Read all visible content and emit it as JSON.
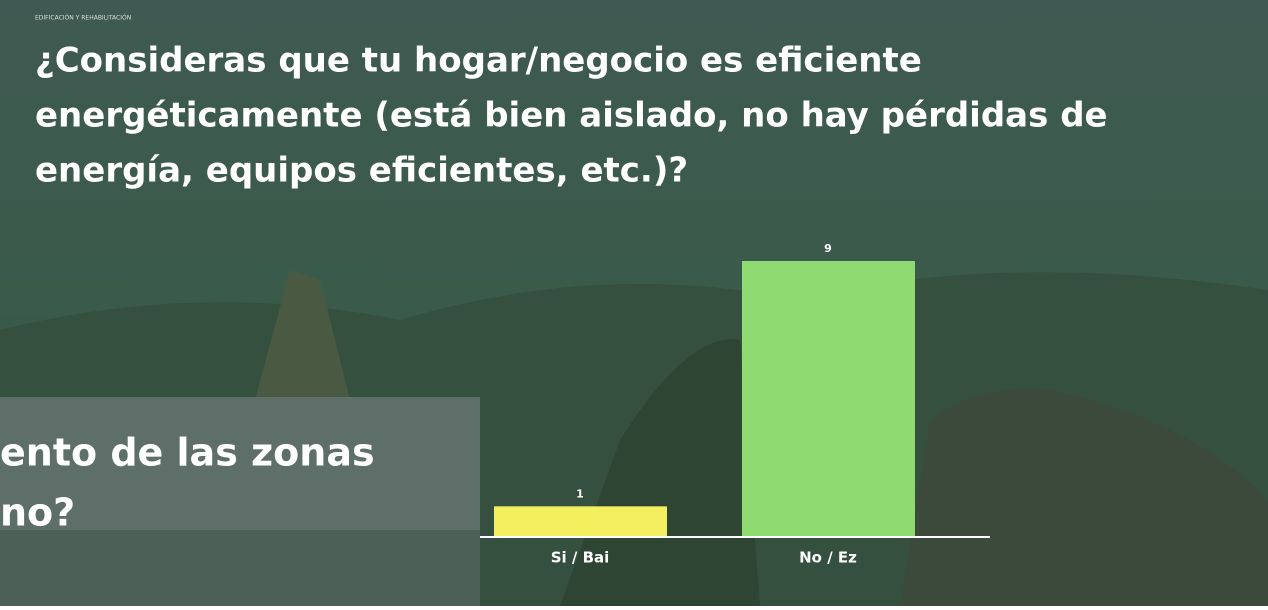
{
  "header": "EDIFICACIÓN Y REHABILITACIÓN",
  "chart_data": {
    "type": "bar",
    "title_lines": [
      "¿Consideras que tu hogar/negocio es eficiente",
      "energéticamente (está bien aislado, no hay pérdidas de",
      "energía, equipos eficientes, etc.)?"
    ],
    "categories": [
      "Si / Bai",
      "No / Ez"
    ],
    "values": [
      1,
      9
    ],
    "colors": [
      "#f3ef5e",
      "#8fdb72"
    ]
  },
  "background_slide": {
    "lines": [
      "ento de las zonas",
      "no?"
    ]
  }
}
